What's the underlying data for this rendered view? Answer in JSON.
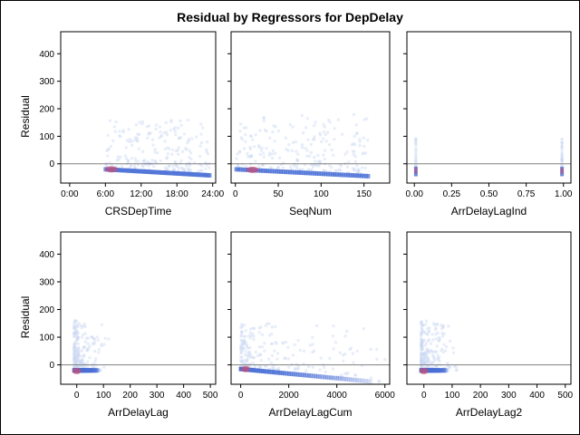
{
  "chart_data": {
    "type": "heatmap",
    "title": "Residual by Regressors for DepDelay",
    "ylabel": "Residual",
    "ylim": [
      -70,
      480
    ],
    "yticks": [
      0,
      100,
      200,
      300,
      400
    ],
    "reference_line_y": 0,
    "colors": {
      "low_density": "#c9d8f2",
      "mid_density": "#4a6fd6",
      "high_density": "#c0507a",
      "frame": "#000000",
      "reference": "#808080"
    },
    "panels": [
      {
        "xlabel": "CRSDepTime",
        "xlim": [
          -1.5,
          24.5
        ],
        "xticks": [
          0,
          6,
          12,
          18,
          24
        ],
        "xtick_labels": [
          "0:00",
          "6:00",
          "12:00",
          "18:00",
          "24:00"
        ],
        "core": {
          "x_start": 6,
          "x_end": 23.5,
          "y_start": -20,
          "y_end": -42
        },
        "hotspot": {
          "x": 7,
          "y": -20
        },
        "spread_top": 160
      },
      {
        "xlabel": "SeqNum",
        "xlim": [
          -5,
          180
        ],
        "xticks": [
          0,
          50,
          100,
          150
        ],
        "xtick_labels": [
          "0",
          "50",
          "100",
          "150"
        ],
        "core": {
          "x_start": 1,
          "x_end": 155,
          "y_start": -20,
          "y_end": -45
        },
        "hotspot": {
          "x": 20,
          "y": -22
        },
        "spread_top": 180
      },
      {
        "xlabel": "ArrDelayLagInd",
        "xlim": [
          -0.05,
          1.05
        ],
        "xticks": [
          0,
          0.25,
          0.5,
          0.75,
          1
        ],
        "xtick_labels": [
          "0.00",
          "0.25",
          "0.50",
          "0.75",
          "1.00"
        ],
        "columns": [
          0.01,
          0.99
        ],
        "hotspot": {
          "x": 0.01,
          "y": -20
        },
        "spread_top": 100
      },
      {
        "xlabel": "ArrDelayLag",
        "xlim": [
          -60,
          520
        ],
        "xticks": [
          0,
          100,
          200,
          300,
          400,
          500
        ],
        "xtick_labels": [
          "0",
          "100",
          "200",
          "300",
          "400",
          "500"
        ],
        "core": {
          "x_start": -10,
          "x_end": 80,
          "y_start": -20,
          "y_end": -20
        },
        "hotspot": {
          "x": 0,
          "y": -22
        },
        "spread_top": 160
      },
      {
        "xlabel": "ArrDelayLagCum",
        "xlim": [
          -400,
          6200
        ],
        "xticks": [
          0,
          2000,
          4000,
          6000
        ],
        "xtick_labels": [
          "0",
          "2000",
          "4000",
          "6000"
        ],
        "core": {
          "x_start": 0,
          "x_end": 5400,
          "y_start": -15,
          "y_end": -60
        },
        "hotspot": {
          "x": 200,
          "y": -15
        },
        "spread_top": 150
      },
      {
        "xlabel": "ArrDelayLag2",
        "xlim": [
          -60,
          520
        ],
        "xticks": [
          0,
          100,
          200,
          300,
          400,
          500
        ],
        "xtick_labels": [
          "0",
          "100",
          "200",
          "300",
          "400",
          "500"
        ],
        "core": {
          "x_start": -10,
          "x_end": 80,
          "y_start": -20,
          "y_end": -20
        },
        "hotspot": {
          "x": 0,
          "y": -22
        },
        "spread_top": 160
      }
    ]
  }
}
